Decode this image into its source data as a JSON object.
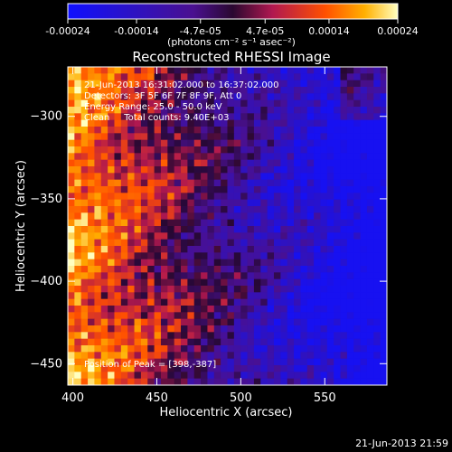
{
  "chart_data": {
    "type": "heatmap",
    "title": "Reconstructed RHESSI Image",
    "xlabel": "Heliocentric X (arcsec)",
    "ylabel": "Heliocentric Y (arcsec)",
    "xlim": [
      397,
      587
    ],
    "ylim": [
      -463,
      -270
    ],
    "x_ticks": [
      400,
      450,
      500,
      550
    ],
    "y_ticks": [
      -300,
      -350,
      -400,
      -450
    ],
    "colorbar": {
      "range": [
        -0.00024,
        0.00024
      ],
      "tick_values": [
        -0.00024,
        -0.00014,
        -4.7e-05,
        4.7e-05,
        0.00014,
        0.00024
      ],
      "tick_labels": [
        "-0.00024",
        "-0.00014",
        "-4.7e-05",
        "4.7e-05",
        "0.00014",
        "0.00024"
      ],
      "units_label": "(photons cm⁻² s⁻¹ asec⁻²)",
      "colors": [
        "#0000ff",
        "#3a0e8a",
        "#6a1ba0",
        "#ff6a00",
        "#ffb000",
        "#ffffb0"
      ]
    },
    "annotations": {
      "time_range": "21-Jun-2013 16:31:02.000 to 16:37:02.000",
      "detectors": "Detectors: 3F 5F 6F 7F 8F 9F, Att 0",
      "energy_range": "Energy Range: 25.0 - 50.0 keV",
      "method": "Clean     Total counts: 9.40E+03",
      "peak": "Position of Peak = [398,-387]"
    },
    "peak_position": [
      398,
      -387
    ],
    "footer_timestamp": "21-Jun-2013 21:59"
  }
}
